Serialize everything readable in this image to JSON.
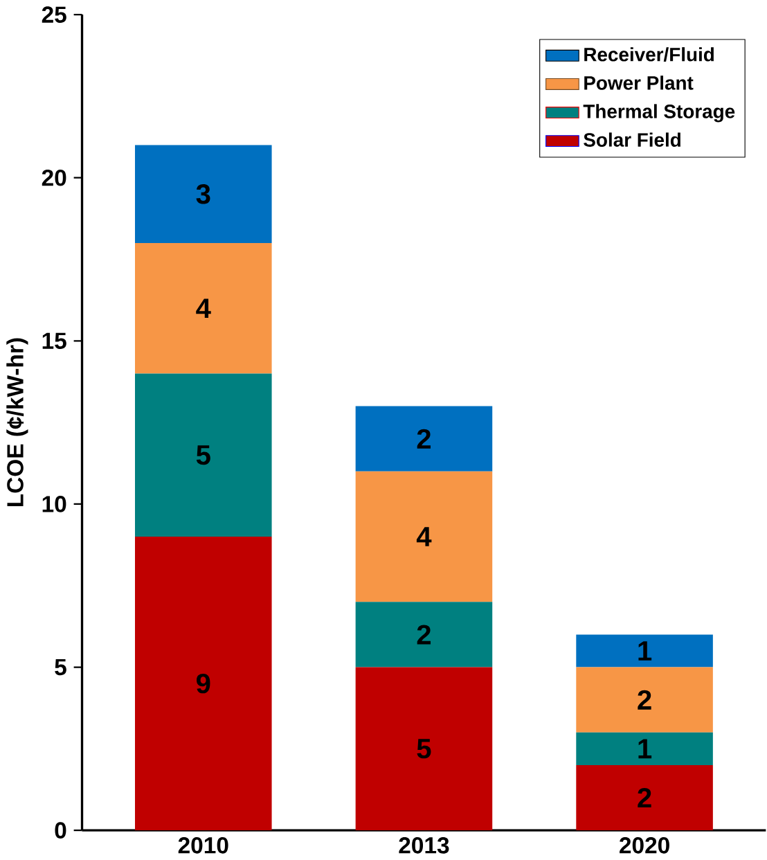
{
  "chart_data": {
    "type": "bar",
    "stacked": true,
    "ylabel": "LCOE (¢/kW-hr)",
    "categories": [
      "2010",
      "2013",
      "2020"
    ],
    "series": [
      {
        "name": "Solar Field",
        "color": "#c00000",
        "values": [
          9,
          5,
          2
        ]
      },
      {
        "name": "Thermal Storage",
        "color": "#008080",
        "values": [
          5,
          2,
          1
        ]
      },
      {
        "name": "Power Plant",
        "color": "#f79646",
        "values": [
          4,
          4,
          2
        ]
      },
      {
        "name": "Receiver/Fluid",
        "color": "#0070c0",
        "values": [
          3,
          2,
          1
        ]
      }
    ],
    "ylim": [
      0,
      25
    ],
    "yticks": [
      0,
      5,
      10,
      15,
      20,
      25
    ],
    "data_labels": true,
    "legend": "top right",
    "grid": false
  }
}
